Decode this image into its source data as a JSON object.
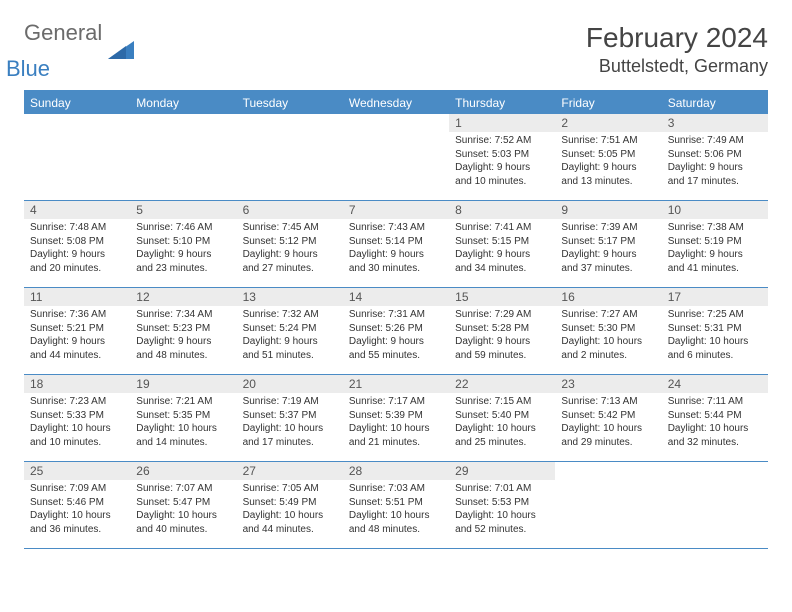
{
  "logo": {
    "text_gray": "General",
    "text_blue": "Blue",
    "shape_color": "#3a7fc0"
  },
  "header": {
    "month_title": "February 2024",
    "location": "Buttelstedt, Germany"
  },
  "calendar": {
    "header_bg": "#4a8bc5",
    "header_fg": "#ffffff",
    "daynum_bg": "#ececec",
    "border_color": "#4a8bc5",
    "weekdays": [
      "Sunday",
      "Monday",
      "Tuesday",
      "Wednesday",
      "Thursday",
      "Friday",
      "Saturday"
    ],
    "weeks": [
      [
        {
          "empty": true
        },
        {
          "empty": true
        },
        {
          "empty": true
        },
        {
          "empty": true
        },
        {
          "num": "1",
          "sunrise": "Sunrise: 7:52 AM",
          "sunset": "Sunset: 5:03 PM",
          "daylight": "Daylight: 9 hours and 10 minutes."
        },
        {
          "num": "2",
          "sunrise": "Sunrise: 7:51 AM",
          "sunset": "Sunset: 5:05 PM",
          "daylight": "Daylight: 9 hours and 13 minutes."
        },
        {
          "num": "3",
          "sunrise": "Sunrise: 7:49 AM",
          "sunset": "Sunset: 5:06 PM",
          "daylight": "Daylight: 9 hours and 17 minutes."
        }
      ],
      [
        {
          "num": "4",
          "sunrise": "Sunrise: 7:48 AM",
          "sunset": "Sunset: 5:08 PM",
          "daylight": "Daylight: 9 hours and 20 minutes."
        },
        {
          "num": "5",
          "sunrise": "Sunrise: 7:46 AM",
          "sunset": "Sunset: 5:10 PM",
          "daylight": "Daylight: 9 hours and 23 minutes."
        },
        {
          "num": "6",
          "sunrise": "Sunrise: 7:45 AM",
          "sunset": "Sunset: 5:12 PM",
          "daylight": "Daylight: 9 hours and 27 minutes."
        },
        {
          "num": "7",
          "sunrise": "Sunrise: 7:43 AM",
          "sunset": "Sunset: 5:14 PM",
          "daylight": "Daylight: 9 hours and 30 minutes."
        },
        {
          "num": "8",
          "sunrise": "Sunrise: 7:41 AM",
          "sunset": "Sunset: 5:15 PM",
          "daylight": "Daylight: 9 hours and 34 minutes."
        },
        {
          "num": "9",
          "sunrise": "Sunrise: 7:39 AM",
          "sunset": "Sunset: 5:17 PM",
          "daylight": "Daylight: 9 hours and 37 minutes."
        },
        {
          "num": "10",
          "sunrise": "Sunrise: 7:38 AM",
          "sunset": "Sunset: 5:19 PM",
          "daylight": "Daylight: 9 hours and 41 minutes."
        }
      ],
      [
        {
          "num": "11",
          "sunrise": "Sunrise: 7:36 AM",
          "sunset": "Sunset: 5:21 PM",
          "daylight": "Daylight: 9 hours and 44 minutes."
        },
        {
          "num": "12",
          "sunrise": "Sunrise: 7:34 AM",
          "sunset": "Sunset: 5:23 PM",
          "daylight": "Daylight: 9 hours and 48 minutes."
        },
        {
          "num": "13",
          "sunrise": "Sunrise: 7:32 AM",
          "sunset": "Sunset: 5:24 PM",
          "daylight": "Daylight: 9 hours and 51 minutes."
        },
        {
          "num": "14",
          "sunrise": "Sunrise: 7:31 AM",
          "sunset": "Sunset: 5:26 PM",
          "daylight": "Daylight: 9 hours and 55 minutes."
        },
        {
          "num": "15",
          "sunrise": "Sunrise: 7:29 AM",
          "sunset": "Sunset: 5:28 PM",
          "daylight": "Daylight: 9 hours and 59 minutes."
        },
        {
          "num": "16",
          "sunrise": "Sunrise: 7:27 AM",
          "sunset": "Sunset: 5:30 PM",
          "daylight": "Daylight: 10 hours and 2 minutes."
        },
        {
          "num": "17",
          "sunrise": "Sunrise: 7:25 AM",
          "sunset": "Sunset: 5:31 PM",
          "daylight": "Daylight: 10 hours and 6 minutes."
        }
      ],
      [
        {
          "num": "18",
          "sunrise": "Sunrise: 7:23 AM",
          "sunset": "Sunset: 5:33 PM",
          "daylight": "Daylight: 10 hours and 10 minutes."
        },
        {
          "num": "19",
          "sunrise": "Sunrise: 7:21 AM",
          "sunset": "Sunset: 5:35 PM",
          "daylight": "Daylight: 10 hours and 14 minutes."
        },
        {
          "num": "20",
          "sunrise": "Sunrise: 7:19 AM",
          "sunset": "Sunset: 5:37 PM",
          "daylight": "Daylight: 10 hours and 17 minutes."
        },
        {
          "num": "21",
          "sunrise": "Sunrise: 7:17 AM",
          "sunset": "Sunset: 5:39 PM",
          "daylight": "Daylight: 10 hours and 21 minutes."
        },
        {
          "num": "22",
          "sunrise": "Sunrise: 7:15 AM",
          "sunset": "Sunset: 5:40 PM",
          "daylight": "Daylight: 10 hours and 25 minutes."
        },
        {
          "num": "23",
          "sunrise": "Sunrise: 7:13 AM",
          "sunset": "Sunset: 5:42 PM",
          "daylight": "Daylight: 10 hours and 29 minutes."
        },
        {
          "num": "24",
          "sunrise": "Sunrise: 7:11 AM",
          "sunset": "Sunset: 5:44 PM",
          "daylight": "Daylight: 10 hours and 32 minutes."
        }
      ],
      [
        {
          "num": "25",
          "sunrise": "Sunrise: 7:09 AM",
          "sunset": "Sunset: 5:46 PM",
          "daylight": "Daylight: 10 hours and 36 minutes."
        },
        {
          "num": "26",
          "sunrise": "Sunrise: 7:07 AM",
          "sunset": "Sunset: 5:47 PM",
          "daylight": "Daylight: 10 hours and 40 minutes."
        },
        {
          "num": "27",
          "sunrise": "Sunrise: 7:05 AM",
          "sunset": "Sunset: 5:49 PM",
          "daylight": "Daylight: 10 hours and 44 minutes."
        },
        {
          "num": "28",
          "sunrise": "Sunrise: 7:03 AM",
          "sunset": "Sunset: 5:51 PM",
          "daylight": "Daylight: 10 hours and 48 minutes."
        },
        {
          "num": "29",
          "sunrise": "Sunrise: 7:01 AM",
          "sunset": "Sunset: 5:53 PM",
          "daylight": "Daylight: 10 hours and 52 minutes."
        },
        {
          "empty": true
        },
        {
          "empty": true
        }
      ]
    ]
  }
}
